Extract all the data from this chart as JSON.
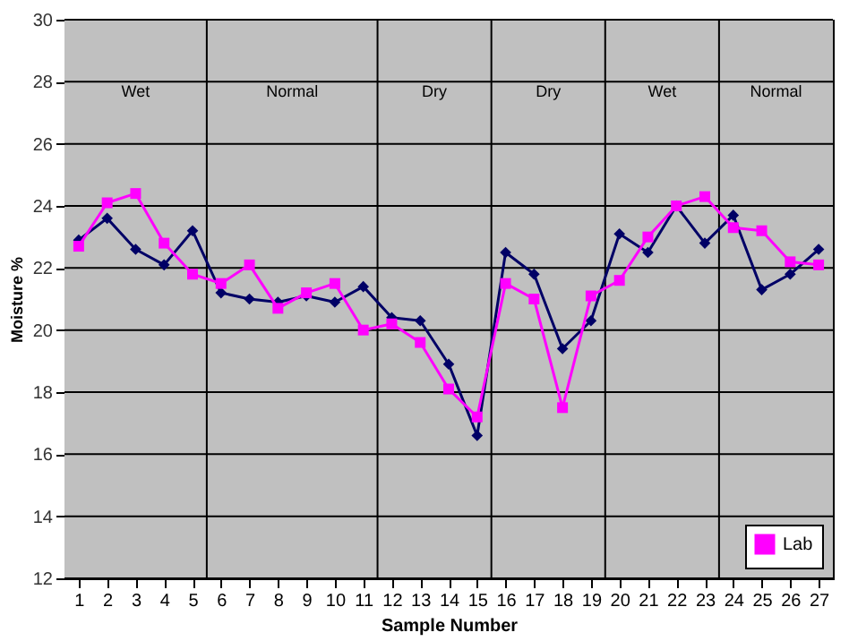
{
  "chart_data": {
    "type": "line",
    "xlabel": "Sample Number",
    "ylabel": "Moisture %",
    "x": [
      1,
      2,
      3,
      4,
      5,
      6,
      7,
      8,
      9,
      10,
      11,
      12,
      13,
      14,
      15,
      16,
      17,
      18,
      19,
      20,
      21,
      22,
      23,
      24,
      25,
      26,
      27
    ],
    "series": [
      {
        "color": "#000066",
        "marker": "diamond",
        "values": [
          22.9,
          23.6,
          22.6,
          22.1,
          23.2,
          21.2,
          21.0,
          20.9,
          21.1,
          20.9,
          21.4,
          20.4,
          20.3,
          18.9,
          16.6,
          22.5,
          21.8,
          19.4,
          20.3,
          23.1,
          22.5,
          24.0,
          22.8,
          23.7,
          21.3,
          21.8,
          22.6
        ]
      },
      {
        "name": "Lab",
        "color": "#ff00ff",
        "marker": "square",
        "values": [
          22.7,
          24.1,
          24.4,
          22.8,
          21.8,
          21.5,
          22.1,
          20.7,
          21.2,
          21.5,
          20.0,
          20.2,
          19.6,
          18.1,
          17.2,
          21.5,
          21.0,
          17.5,
          21.1,
          21.6,
          23.0,
          24.0,
          24.3,
          23.3,
          23.2,
          22.2,
          22.1
        ]
      }
    ],
    "bands": [
      {
        "axis": "x",
        "from": 0.5,
        "to": 5.5,
        "label": "Wet",
        "color": "#c0c0c0"
      },
      {
        "axis": "x",
        "from": 5.5,
        "to": 11.5,
        "label": "Normal",
        "color": "#c0c0c0"
      },
      {
        "axis": "x",
        "from": 11.5,
        "to": 15.5,
        "label": "Dry",
        "color": "#c0c0c0"
      },
      {
        "axis": "x",
        "from": 15.5,
        "to": 19.5,
        "label": "Dry",
        "color": "#c0c0c0"
      },
      {
        "axis": "x",
        "from": 19.5,
        "to": 23.5,
        "label": "Wet",
        "color": "#c0c0c0"
      },
      {
        "axis": "x",
        "from": 23.5,
        "to": 27.5,
        "label": "Normal",
        "color": "#c0c0c0"
      }
    ],
    "xlim": [
      0.5,
      27.5
    ],
    "xticks": [
      1,
      2,
      3,
      4,
      5,
      6,
      7,
      8,
      9,
      10,
      11,
      12,
      13,
      14,
      15,
      16,
      17,
      18,
      19,
      20,
      21,
      22,
      23,
      24,
      25,
      26,
      27
    ],
    "ylim": [
      12,
      30
    ],
    "yticks": [
      12,
      14,
      16,
      18,
      20,
      22,
      24,
      26,
      28,
      30
    ],
    "grid": "y",
    "legend": "bottom right"
  }
}
